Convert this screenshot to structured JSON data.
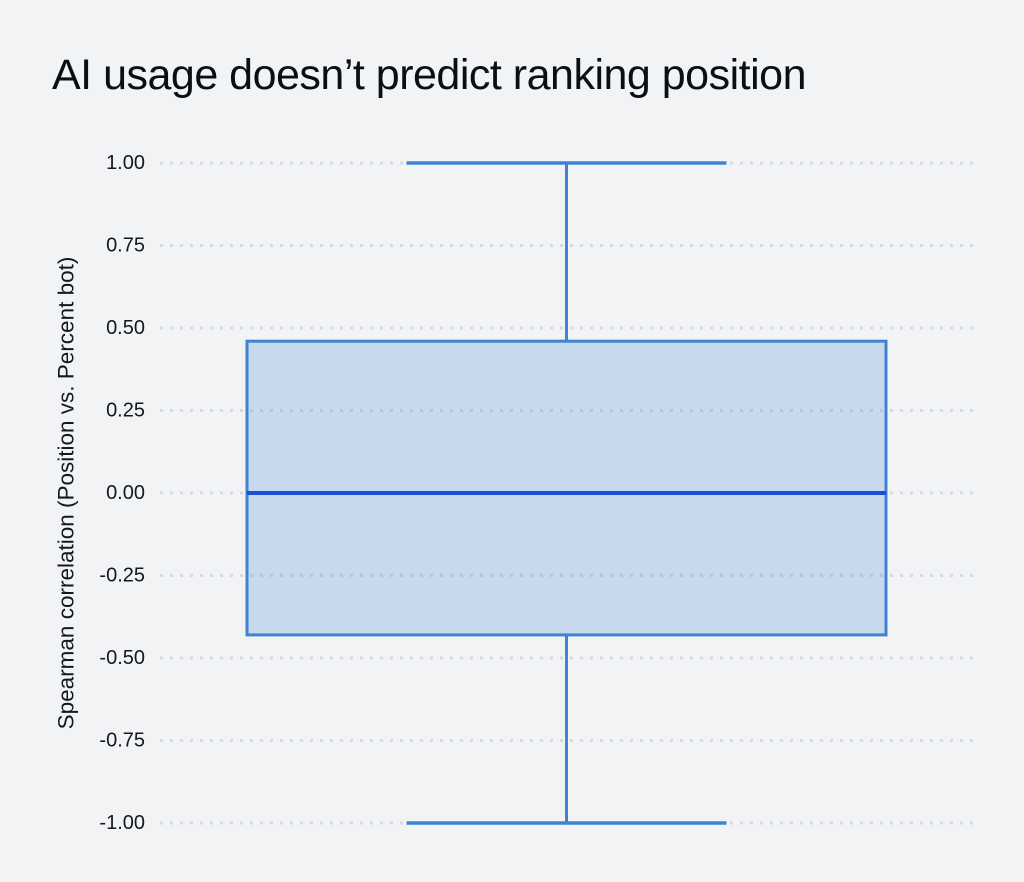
{
  "colors": {
    "background": "#f2f3f5",
    "title_text": "#0c0f12",
    "tick_text": "#15181c",
    "grid_dots": "#d6d9dd",
    "box_border": "#3e84d2",
    "box_fill": "#3e84d2",
    "box_fill_opacity": 0.24,
    "median_line": "#1d4ed8"
  },
  "chart_data": {
    "type": "box",
    "title": "AI usage doesn’t predict ranking position",
    "xlabel": "",
    "ylabel": "Spearman correlation (Position vs. Percent bot)",
    "ylim": [
      -1.0,
      1.0
    ],
    "grid": "dotted-horizontal",
    "legend": "none",
    "yticks": [
      {
        "value": 1.0,
        "label": "1.00"
      },
      {
        "value": 0.75,
        "label": "0.75"
      },
      {
        "value": 0.5,
        "label": "0.50"
      },
      {
        "value": 0.25,
        "label": "0.25"
      },
      {
        "value": 0.0,
        "label": "0.00"
      },
      {
        "value": -0.25,
        "label": "-0.25"
      },
      {
        "value": -0.5,
        "label": "-0.50"
      },
      {
        "value": -0.75,
        "label": "-0.75"
      },
      {
        "value": -1.0,
        "label": "-1.00"
      }
    ],
    "series": [
      {
        "name": "Position vs. Percent bot",
        "whisker_high": 1.0,
        "q3": 0.46,
        "median": 0.0,
        "q1": -0.43,
        "whisker_low": -1.0
      }
    ]
  }
}
